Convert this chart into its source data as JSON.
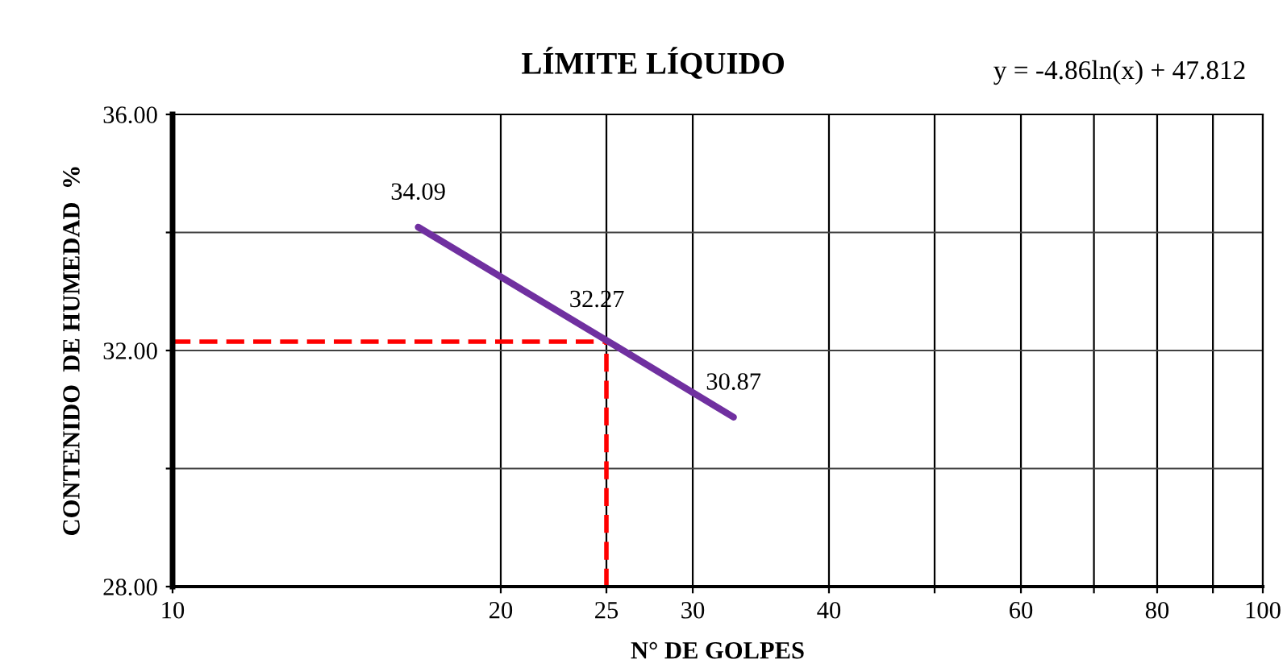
{
  "chart_data": {
    "type": "line",
    "title": "LÍMITE LÍQUIDO",
    "xlabel": "N° DE GOLPES",
    "ylabel": "CONTENIDO  DE HUMEDAD  %",
    "annotations": [
      "y = -4.86ln(x) + 47.812"
    ],
    "x": [
      16.8,
      24.5,
      32.7
    ],
    "series": [
      {
        "color": "#7030a0",
        "values": [
          34.09,
          32.27,
          30.87
        ]
      }
    ],
    "data_labels": true,
    "log": "x",
    "grid": true,
    "marker": "none",
    "line_style": "solid",
    "xlim": [
      10,
      100
    ],
    "xticks": [
      10,
      20,
      25,
      30,
      40,
      {
        "value": 50,
        "label": null
      },
      60,
      {
        "value": 70,
        "label": null
      },
      80,
      {
        "value": 90,
        "label": null
      },
      100
    ],
    "ylim": [
      28,
      36
    ],
    "yticks": [
      {
        "value": 28,
        "label": "28.00"
      },
      {
        "value": 30,
        "label": null
      },
      {
        "value": 32,
        "label": "32.00"
      },
      {
        "value": 34,
        "label": null
      },
      {
        "value": 36,
        "label": "36.00"
      }
    ],
    "ref_lines": [
      {
        "axis": "y",
        "value": 32.15,
        "color": "#ff0000",
        "line_style": "dashed"
      },
      {
        "axis": "x",
        "value": 25,
        "color": "#ff0000",
        "line_style": "dashed"
      }
    ]
  }
}
